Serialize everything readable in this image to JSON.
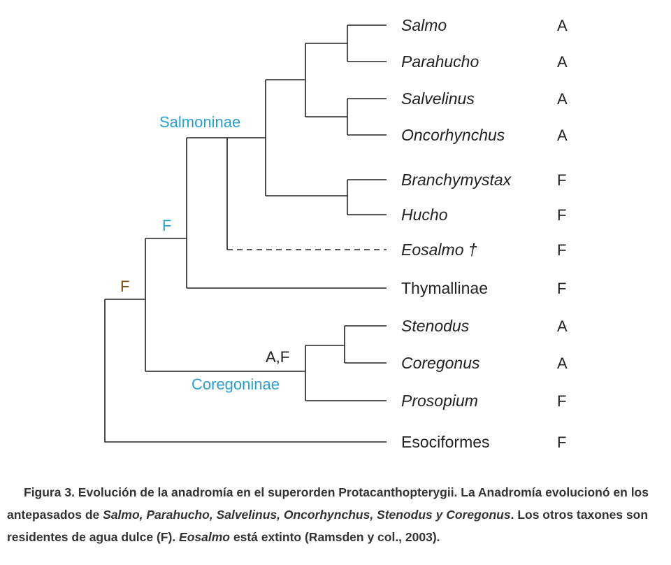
{
  "colors": {
    "text": "#222222",
    "subfamily_label": "#2a9fd0",
    "outgroup_label": "#e02a36",
    "ancestral_state_orange": "#7a4a12"
  },
  "taxa": [
    {
      "name": "Salmo",
      "state": "A"
    },
    {
      "name": "Parahucho",
      "state": "A"
    },
    {
      "name": "Salvelinus",
      "state": "A"
    },
    {
      "name": "Oncorhynchus",
      "state": "A"
    },
    {
      "name": "Branchymystax",
      "state": "F"
    },
    {
      "name": "Hucho",
      "state": "F"
    },
    {
      "name": "Eosalmo †",
      "state": "F"
    },
    {
      "name": "Thymallinae",
      "state": "F"
    },
    {
      "name": "Stenodus",
      "state": "A"
    },
    {
      "name": "Coregonus",
      "state": "A"
    },
    {
      "name": "Prosopium",
      "state": "F"
    },
    {
      "name": "Esociformes",
      "state": "F"
    }
  ],
  "node_labels": {
    "salmoninae": "Salmoninae",
    "coregoninae": "Coregoninae",
    "root_state": "F",
    "salmonidae_state": "F",
    "coregonine_state": "A,F"
  },
  "caption": {
    "line1_prefix": "Figura 3. Evolución de la anadromía en el superorden Protacanthopterygii. La Anadromía evolucionó en los antepasados de ",
    "italic_taxa": "Salmo, Parahucho, Salvelinus, Oncorhynchus, Stenodus y Coregonus",
    "middle": ". Los otros taxones son residentes de agua dulce (F). ",
    "italic_extinct": "Eosalmo",
    "suffix": " está extinto (Ramsden y col., 2003)."
  }
}
